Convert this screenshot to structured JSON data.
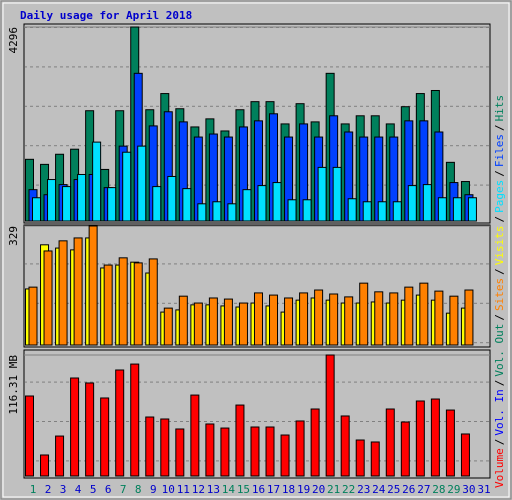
{
  "chart_data": [
    {
      "type": "bar",
      "title": "Daily usage for April 2018",
      "categories": [
        "1",
        "2",
        "3",
        "4",
        "5",
        "6",
        "7",
        "8",
        "9",
        "10",
        "11",
        "12",
        "13",
        "14",
        "15",
        "16",
        "17",
        "18",
        "19",
        "20",
        "21",
        "22",
        "23",
        "24",
        "25",
        "26",
        "27",
        "28",
        "29",
        "30",
        "31"
      ],
      "category_colors": [
        "#00805c",
        "#0000cc",
        "#0000cc",
        "#0000cc",
        "#0000cc",
        "#0000cc",
        "#00805c",
        "#00805c",
        "#0000cc",
        "#0000cc",
        "#0000cc",
        "#0000cc",
        "#0000cc",
        "#00805c",
        "#00805c",
        "#0000cc",
        "#0000cc",
        "#0000cc",
        "#0000cc",
        "#0000cc",
        "#00805c",
        "#00805c",
        "#0000cc",
        "#0000cc",
        "#0000cc",
        "#0000cc",
        "#0000cc",
        "#00805c",
        "#00805c",
        "#0000cc",
        "#0000cc"
      ],
      "legend_separator": "/",
      "ylim": [
        0,
        4296
      ],
      "yticks": [
        4296
      ],
      "series": [
        {
          "name": "Hits",
          "color": "#00805c",
          "values": [
            1366,
            1254,
            1478,
            1590,
            2442,
            1142,
            2442,
            4296,
            2464,
            2822,
            2486,
            2083,
            2262,
            1994,
            2464,
            2643,
            2643,
            2150,
            2598,
            2195,
            3270,
            2150,
            2330,
            2330,
            2150,
            2531,
            2822,
            2890,
            1299,
            874,
            null
          ]
        },
        {
          "name": "Files",
          "color": "#0040ff",
          "values": [
            694,
            582,
            806,
            918,
            1030,
            739,
            1658,
            3270,
            2106,
            2419,
            2195,
            1859,
            1926,
            1859,
            2083,
            2218,
            2374,
            1859,
            2150,
            1859,
            2330,
            1971,
            1859,
            1859,
            1859,
            2218,
            2218,
            1971,
            851,
            582,
            null
          ]
        },
        {
          "name": "Pages",
          "color": "#00e0ff",
          "values": [
            515,
            918,
            762,
            1030,
            1747,
            739,
            1523,
            1658,
            762,
            986,
            717,
            381,
            426,
            381,
            694,
            784,
            851,
            470,
            470,
            1187,
            1187,
            493,
            426,
            426,
            426,
            784,
            806,
            515,
            515,
            515,
            null
          ]
        }
      ]
    },
    {
      "type": "bar",
      "ylim": [
        0,
        329
      ],
      "yticks": [
        329
      ],
      "series": [
        {
          "name": "Visits",
          "color": "#ffff00",
          "values": [
            155,
            277,
            268,
            263,
            296,
            213,
            221,
            229,
            199,
            91,
            97,
            111,
            111,
            108,
            105,
            116,
            108,
            91,
            124,
            130,
            124,
            116,
            116,
            119,
            116,
            124,
            138,
            124,
            88,
            102,
            null
          ]
        },
        {
          "name": "Sites",
          "color": "#ff8000",
          "values": [
            160,
            260,
            288,
            296,
            329,
            221,
            241,
            227,
            238,
            102,
            135,
            116,
            130,
            127,
            116,
            144,
            138,
            130,
            144,
            152,
            141,
            133,
            171,
            147,
            144,
            160,
            171,
            149,
            135,
            152,
            null
          ]
        }
      ]
    },
    {
      "type": "bar",
      "ylim": [
        0,
        116.31
      ],
      "yticks": [
        {
          "value": 116.31,
          "label": "116.31 MB"
        }
      ],
      "legend": [
        {
          "name": "Vol. Out",
          "color": "#00805c"
        },
        {
          "name": "Vol. In",
          "color": "#0000ff"
        }
      ],
      "series": [
        {
          "name": "Volume",
          "color": "#ff0000",
          "values": [
            76.9,
            20.2,
            38.4,
            94.2,
            89.4,
            75.0,
            101.9,
            107.6,
            56.7,
            54.8,
            45.2,
            77.8,
            50.0,
            46.1,
            68.2,
            47.1,
            47.1,
            39.4,
            52.9,
            64.4,
            116.31,
            57.7,
            34.6,
            32.7,
            64.4,
            51.9,
            72.1,
            74.0,
            63.4,
            40.4,
            null
          ]
        }
      ]
    }
  ]
}
